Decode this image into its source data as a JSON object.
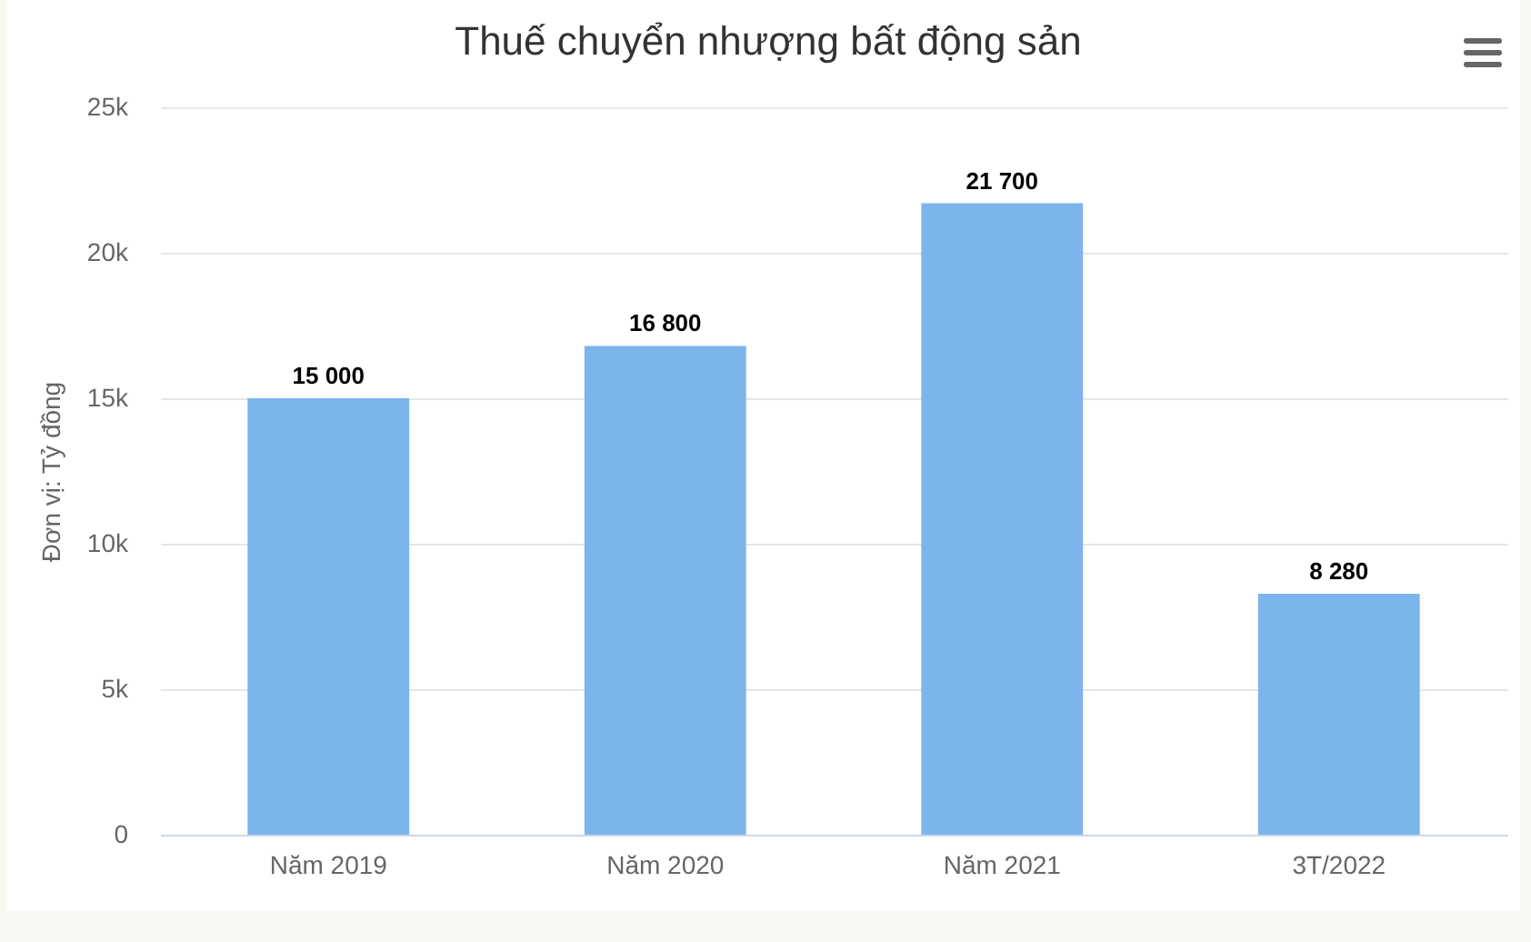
{
  "chart_data": {
    "type": "bar",
    "title": "Thuế chuyển nhượng bất động sản",
    "ylabel": "Đơn vị: Tỷ đồng",
    "categories": [
      "Năm 2019",
      "Năm 2020",
      "Năm 2021",
      "3T/2022"
    ],
    "values": [
      15000,
      16800,
      21700,
      8280
    ],
    "color": "#7cb5ec",
    "value_labels": [
      "15 000",
      "16 800",
      "21 700",
      "8 280"
    ],
    "ylim": [
      0,
      25000
    ],
    "yticks": [
      0,
      {
        "value": 5000,
        "label": "5k"
      },
      {
        "value": 10000,
        "label": "10k"
      },
      {
        "value": 15000,
        "label": "15k"
      },
      {
        "value": 20000,
        "label": "20k"
      },
      {
        "value": 25000,
        "label": "25k"
      }
    ],
    "grid": "y"
  }
}
